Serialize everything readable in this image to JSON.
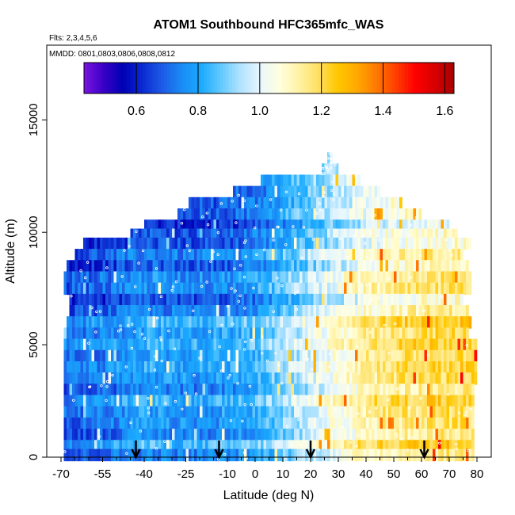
{
  "chart_data": {
    "type": "heatmap",
    "title": "ATOM1 Southbound HFC365mfc_WAS",
    "flights_label": "Flts: 2,3,4,5,6",
    "mmdd_label": "MMDD: 0801,0803,0806,0808,0812",
    "xlabel": "Latitude (deg N)",
    "ylabel": "Altitude (m)",
    "xlim": [
      -70,
      80
    ],
    "ylim": [
      0,
      17500
    ],
    "x_ticks": [
      -70,
      -55,
      -40,
      -25,
      -10,
      0,
      10,
      20,
      30,
      40,
      50,
      60,
      70,
      80
    ],
    "x_minor_ticks": [
      -65,
      -60,
      -50,
      -45,
      -35,
      -30,
      -20,
      -15,
      -5,
      5,
      15,
      25,
      35,
      45,
      55,
      65,
      75
    ],
    "y_ticks": [
      0,
      5000,
      10000,
      15000
    ],
    "colorbar": {
      "range": [
        0.43,
        1.63
      ],
      "ticks": [
        0.6,
        0.8,
        1.0,
        1.2,
        1.4,
        1.6
      ],
      "colors": [
        "#7a14e0",
        "#3a00c8",
        "#0000b4",
        "#0a2ad2",
        "#1e5ae6",
        "#1a8af5",
        "#1aaaff",
        "#60c8ff",
        "#aee2ff",
        "#e6f6ff",
        "#ffffe0",
        "#fff3a8",
        "#ffe066",
        "#ffc800",
        "#ffaa00",
        "#ff7a00",
        "#ff4000",
        "#ff0000",
        "#d80000",
        "#a80000"
      ]
    },
    "altitude_bands": [
      {
        "alt": 13300,
        "lat_min": 26,
        "lat_max": 28
      },
      {
        "alt": 12800,
        "lat_min": 24,
        "lat_max": 30
      },
      {
        "alt": 12300,
        "lat_min": 2,
        "lat_max": 38
      },
      {
        "alt": 11800,
        "lat_min": -8,
        "lat_max": 45
      },
      {
        "alt": 11300,
        "lat_min": -24,
        "lat_max": 53
      },
      {
        "alt": 10800,
        "lat_min": -28,
        "lat_max": 60
      },
      {
        "alt": 10300,
        "lat_min": -40,
        "lat_max": 70
      },
      {
        "alt": 9900,
        "lat_min": -45,
        "lat_max": 73
      },
      {
        "alt": 9500,
        "lat_min": -62,
        "lat_max": 78
      },
      {
        "alt": 9000,
        "lat_min": -65,
        "lat_max": 75
      },
      {
        "alt": 8500,
        "lat_min": -68,
        "lat_max": 77
      },
      {
        "alt": 8000,
        "lat_min": -69,
        "lat_max": 78
      },
      {
        "alt": 7500,
        "lat_min": -69,
        "lat_max": 78
      },
      {
        "alt": 7000,
        "lat_min": -67,
        "lat_max": 75
      },
      {
        "alt": 6500,
        "lat_min": -67,
        "lat_max": 77
      },
      {
        "alt": 6000,
        "lat_min": -68,
        "lat_max": 78
      },
      {
        "alt": 5500,
        "lat_min": -69,
        "lat_max": 77
      },
      {
        "alt": 5000,
        "lat_min": -69,
        "lat_max": 80
      },
      {
        "alt": 4500,
        "lat_min": -69,
        "lat_max": 80
      },
      {
        "alt": 4000,
        "lat_min": -69,
        "lat_max": 80
      },
      {
        "alt": 3500,
        "lat_min": -69,
        "lat_max": 80
      },
      {
        "alt": 3000,
        "lat_min": -69,
        "lat_max": 79
      },
      {
        "alt": 2500,
        "lat_min": -69,
        "lat_max": 79
      },
      {
        "alt": 2000,
        "lat_min": -69,
        "lat_max": 79
      },
      {
        "alt": 1500,
        "lat_min": -69,
        "lat_max": 79
      },
      {
        "alt": 1000,
        "lat_min": -69,
        "lat_max": 79
      },
      {
        "alt": 500,
        "lat_min": -69,
        "lat_max": 79
      },
      {
        "alt": 100,
        "lat_min": -69,
        "lat_max": 79
      }
    ],
    "latitude_profile": [
      {
        "lat": -70,
        "value": 0.68
      },
      {
        "lat": -55,
        "value": 0.72
      },
      {
        "lat": -40,
        "value": 0.78
      },
      {
        "lat": -25,
        "value": 0.76
      },
      {
        "lat": -10,
        "value": 0.78
      },
      {
        "lat": 0,
        "value": 0.82
      },
      {
        "lat": 10,
        "value": 0.9
      },
      {
        "lat": 20,
        "value": 0.98
      },
      {
        "lat": 30,
        "value": 1.05
      },
      {
        "lat": 40,
        "value": 1.12
      },
      {
        "lat": 50,
        "value": 1.15
      },
      {
        "lat": 60,
        "value": 1.17
      },
      {
        "lat": 70,
        "value": 1.18
      },
      {
        "lat": 80,
        "value": 1.18
      }
    ],
    "arrow_latitudes": [
      -43,
      -13,
      20,
      61
    ]
  }
}
